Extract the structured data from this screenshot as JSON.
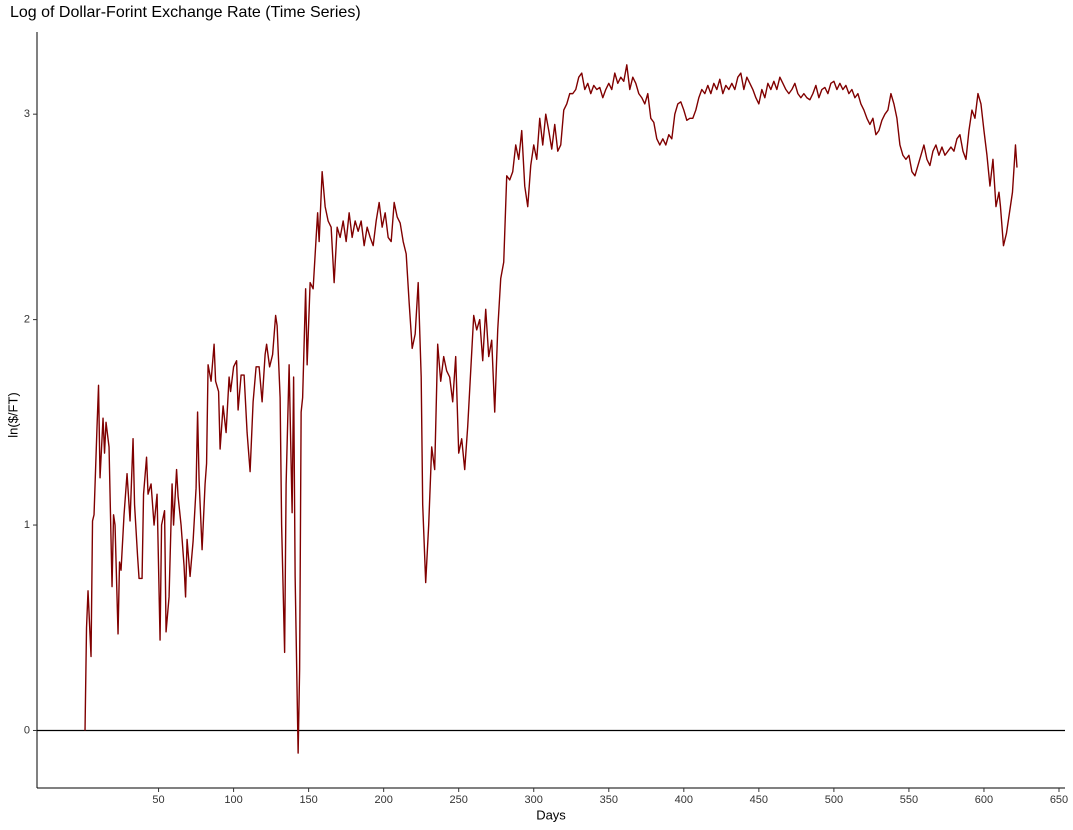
{
  "chart_data": {
    "type": "line",
    "title": "Log of Dollar-Forint Exchange Rate (Time Series)",
    "x_label": "Days",
    "y_label": "ln($/FT)",
    "color": "#800000",
    "hline": 0,
    "xlim": [
      -31,
      654
    ],
    "ylim": [
      -0.28,
      3.4
    ],
    "xticks": [
      50,
      100,
      150,
      200,
      250,
      300,
      350,
      400,
      450,
      500,
      550,
      600,
      650
    ],
    "yticks": [
      0,
      1,
      2,
      3
    ],
    "x": [
      1,
      2,
      3,
      5,
      6,
      7,
      9,
      10,
      11,
      13,
      14,
      15,
      17,
      19,
      20,
      21,
      23,
      24,
      25,
      27,
      29,
      31,
      33,
      34,
      36,
      37,
      39,
      40,
      42,
      43,
      45,
      47,
      49,
      51,
      52,
      54,
      55,
      57,
      59,
      60,
      62,
      63,
      65,
      67,
      68,
      69,
      71,
      73,
      75,
      76,
      77,
      79,
      81,
      82,
      83,
      85,
      87,
      88,
      90,
      91,
      93,
      95,
      97,
      98,
      100,
      102,
      103,
      105,
      107,
      109,
      111,
      113,
      115,
      117,
      119,
      121,
      122,
      124,
      126,
      128,
      129,
      131,
      132,
      134,
      135,
      137,
      139,
      140,
      141,
      143,
      144,
      145,
      146,
      148,
      149,
      151,
      153,
      155,
      156,
      157,
      159,
      161,
      163,
      165,
      167,
      169,
      171,
      173,
      175,
      177,
      179,
      181,
      183,
      185,
      187,
      189,
      191,
      193,
      195,
      197,
      199,
      201,
      203,
      205,
      207,
      209,
      211,
      213,
      215,
      217,
      219,
      221,
      223,
      225,
      226,
      228,
      230,
      232,
      234,
      236,
      238,
      240,
      242,
      244,
      246,
      248,
      250,
      252,
      254,
      256,
      258,
      260,
      262,
      264,
      266,
      268,
      270,
      272,
      274,
      276,
      278,
      280,
      282,
      284,
      286,
      288,
      290,
      292,
      294,
      296,
      298,
      300,
      302,
      304,
      306,
      308,
      310,
      312,
      314,
      316,
      318,
      320,
      322,
      324,
      326,
      328,
      330,
      332,
      334,
      336,
      338,
      340,
      342,
      344,
      346,
      348,
      350,
      352,
      354,
      356,
      358,
      360,
      362,
      364,
      366,
      368,
      370,
      372,
      374,
      376,
      378,
      380,
      382,
      384,
      386,
      388,
      390,
      392,
      394,
      396,
      398,
      400,
      402,
      404,
      406,
      408,
      410,
      412,
      414,
      416,
      418,
      420,
      422,
      424,
      426,
      428,
      430,
      432,
      434,
      436,
      438,
      440,
      442,
      444,
      446,
      448,
      450,
      452,
      454,
      456,
      458,
      460,
      462,
      464,
      466,
      468,
      470,
      472,
      474,
      476,
      478,
      480,
      482,
      484,
      486,
      488,
      490,
      492,
      494,
      496,
      498,
      500,
      502,
      504,
      506,
      508,
      510,
      512,
      514,
      516,
      518,
      520,
      522,
      524,
      526,
      528,
      530,
      532,
      534,
      536,
      538,
      540,
      542,
      544,
      546,
      548,
      550,
      552,
      554,
      556,
      558,
      560,
      562,
      564,
      566,
      568,
      570,
      572,
      574,
      576,
      578,
      580,
      582,
      584,
      586,
      588,
      590,
      592,
      594,
      596,
      598,
      600,
      602,
      604,
      606,
      608,
      610,
      611,
      613,
      615,
      617,
      619,
      621,
      622
    ],
    "values": [
      0,
      0.5,
      0.68,
      0.36,
      1.02,
      1.05,
      1.48,
      1.68,
      1.23,
      1.52,
      1.35,
      1.5,
      1.38,
      0.7,
      1.05,
      1.0,
      0.47,
      0.82,
      0.78,
      1.05,
      1.25,
      1.02,
      1.42,
      1.1,
      0.85,
      0.74,
      0.74,
      1.15,
      1.33,
      1.15,
      1.2,
      1.0,
      1.15,
      0.44,
      1.0,
      1.07,
      0.48,
      0.65,
      1.2,
      1.0,
      1.27,
      1.14,
      1.0,
      0.8,
      0.65,
      0.93,
      0.75,
      0.92,
      1.18,
      1.55,
      1.22,
      0.88,
      1.2,
      1.3,
      1.78,
      1.7,
      1.88,
      1.7,
      1.65,
      1.37,
      1.58,
      1.45,
      1.72,
      1.65,
      1.77,
      1.8,
      1.56,
      1.73,
      1.73,
      1.45,
      1.26,
      1.6,
      1.77,
      1.77,
      1.6,
      1.83,
      1.88,
      1.77,
      1.83,
      2.02,
      1.97,
      1.62,
      1.0,
      0.38,
      1.2,
      1.78,
      1.06,
      1.72,
      0.75,
      -0.11,
      0.3,
      1.55,
      1.62,
      2.15,
      1.78,
      2.18,
      2.15,
      2.4,
      2.52,
      2.38,
      2.72,
      2.55,
      2.48,
      2.45,
      2.18,
      2.45,
      2.4,
      2.48,
      2.38,
      2.52,
      2.4,
      2.48,
      2.43,
      2.48,
      2.36,
      2.45,
      2.4,
      2.36,
      2.48,
      2.57,
      2.45,
      2.52,
      2.4,
      2.38,
      2.57,
      2.5,
      2.47,
      2.38,
      2.32,
      2.08,
      1.86,
      1.93,
      2.18,
      1.72,
      1.1,
      0.72,
      1.0,
      1.38,
      1.27,
      1.88,
      1.7,
      1.82,
      1.75,
      1.72,
      1.6,
      1.82,
      1.35,
      1.42,
      1.27,
      1.48,
      1.75,
      2.02,
      1.95,
      2.0,
      1.8,
      2.05,
      1.82,
      1.9,
      1.55,
      1.95,
      2.2,
      2.28,
      2.7,
      2.68,
      2.72,
      2.85,
      2.78,
      2.92,
      2.65,
      2.55,
      2.75,
      2.85,
      2.78,
      2.98,
      2.85,
      3.0,
      2.92,
      2.83,
      2.95,
      2.82,
      2.85,
      3.02,
      3.05,
      3.1,
      3.1,
      3.12,
      3.18,
      3.2,
      3.12,
      3.15,
      3.1,
      3.14,
      3.12,
      3.13,
      3.08,
      3.12,
      3.15,
      3.12,
      3.2,
      3.15,
      3.18,
      3.16,
      3.24,
      3.12,
      3.18,
      3.15,
      3.1,
      3.08,
      3.05,
      3.1,
      2.98,
      2.96,
      2.88,
      2.85,
      2.88,
      2.85,
      2.9,
      2.88,
      3.0,
      3.05,
      3.06,
      3.02,
      2.97,
      2.98,
      2.98,
      3.02,
      3.08,
      3.12,
      3.1,
      3.14,
      3.1,
      3.15,
      3.12,
      3.17,
      3.1,
      3.14,
      3.12,
      3.15,
      3.12,
      3.18,
      3.2,
      3.12,
      3.18,
      3.15,
      3.12,
      3.08,
      3.05,
      3.12,
      3.08,
      3.15,
      3.12,
      3.16,
      3.12,
      3.18,
      3.15,
      3.12,
      3.1,
      3.12,
      3.15,
      3.1,
      3.08,
      3.1,
      3.08,
      3.07,
      3.1,
      3.14,
      3.08,
      3.12,
      3.13,
      3.1,
      3.15,
      3.16,
      3.12,
      3.15,
      3.12,
      3.14,
      3.1,
      3.12,
      3.08,
      3.1,
      3.05,
      3.02,
      2.98,
      2.95,
      2.98,
      2.9,
      2.92,
      2.97,
      3.0,
      3.02,
      3.1,
      3.05,
      2.98,
      2.85,
      2.8,
      2.78,
      2.8,
      2.72,
      2.7,
      2.75,
      2.8,
      2.85,
      2.78,
      2.75,
      2.82,
      2.85,
      2.8,
      2.84,
      2.8,
      2.82,
      2.84,
      2.82,
      2.88,
      2.9,
      2.82,
      2.78,
      2.92,
      3.02,
      2.98,
      3.1,
      3.05,
      2.92,
      2.8,
      2.65,
      2.78,
      2.55,
      2.62,
      2.55,
      2.36,
      2.42,
      2.52,
      2.62,
      2.85,
      2.74
    ]
  }
}
